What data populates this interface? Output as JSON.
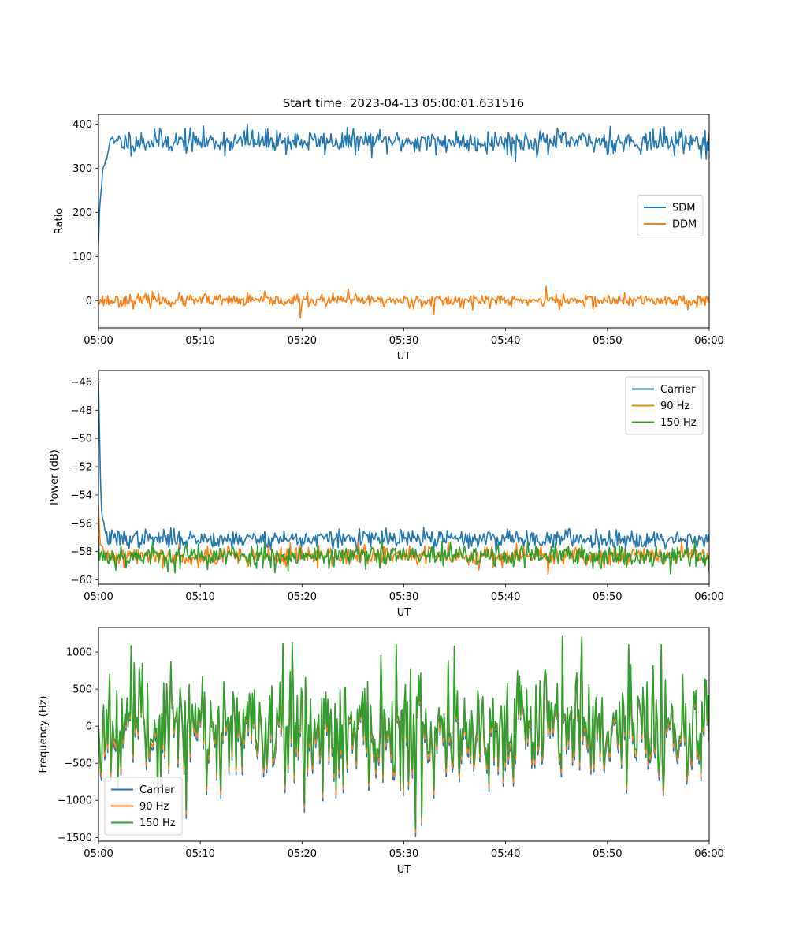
{
  "title": "Start time: 2023-04-13 05:00:01.631516",
  "chart_data": [
    {
      "type": "line",
      "xlabel": "UT",
      "ylabel": "Ratio",
      "xticks": [
        "05:00",
        "05:10",
        "05:20",
        "05:30",
        "05:40",
        "05:50",
        "06:00"
      ],
      "xlim": [
        0,
        60
      ],
      "ylim": [
        -62,
        422
      ],
      "yticks": [
        0,
        100,
        200,
        300,
        400
      ],
      "legend": "center-right",
      "series": [
        {
          "name": "SDM",
          "color": "#1f77b4",
          "baseline": 360,
          "noise": 13,
          "start": 130,
          "decay": 0.35,
          "spikes": [
            [
              14.6,
              400
            ],
            [
              8.5,
              390
            ],
            [
              50.3,
              395
            ],
            [
              59.6,
              385
            ],
            [
              41.0,
              315
            ],
            [
              59.7,
              320
            ],
            [
              33.2,
              330
            ],
            [
              5.5,
              388
            ],
            [
              17.5,
              385
            ]
          ]
        },
        {
          "name": "DDM",
          "color": "#ff7f0e",
          "baseline": 0,
          "noise": 7,
          "start": -8,
          "decay": 0,
          "spikes": [
            [
              19.8,
              -40
            ],
            [
              24.5,
              27
            ],
            [
              33.0,
              -32
            ],
            [
              44.0,
              32
            ],
            [
              5.3,
              20
            ],
            [
              45.3,
              -20
            ],
            [
              10.5,
              15
            ]
          ]
        }
      ]
    },
    {
      "type": "line",
      "xlabel": "UT",
      "ylabel": "Power (dB)",
      "xticks": [
        "05:00",
        "05:10",
        "05:20",
        "05:30",
        "05:40",
        "05:50",
        "06:00"
      ],
      "xlim": [
        0,
        60
      ],
      "ylim": [
        -60.3,
        -45.2
      ],
      "yticks": [
        -60,
        -58,
        -56,
        -54,
        -52,
        -50,
        -48,
        -46
      ],
      "legend": "top-right",
      "series": [
        {
          "name": "Carrier",
          "color": "#1f77b4",
          "baseline": -57.1,
          "noise": 0.32,
          "start": -45.7,
          "decay": 0.2,
          "spikes": [
            [
              32.0,
              -56.3
            ],
            [
              40.2,
              -56.4
            ]
          ]
        },
        {
          "name": "90 Hz",
          "color": "#ff7f0e",
          "baseline": -58.3,
          "noise": 0.35,
          "start": -55.2,
          "decay": 0.15,
          "spikes": [
            [
              44.2,
              -59.6
            ],
            [
              57.3,
              -57.3
            ],
            [
              25.5,
              -57.3
            ]
          ]
        },
        {
          "name": "150 Hz",
          "color": "#2ca02c",
          "baseline": -58.3,
          "noise": 0.42,
          "start": -57.5,
          "decay": 0.1,
          "spikes": [
            [
              7.5,
              -59.5
            ],
            [
              59.6,
              -59.0
            ]
          ]
        }
      ]
    },
    {
      "type": "line",
      "xlabel": "UT",
      "ylabel": "Frequency (Hz)",
      "xticks": [
        "05:00",
        "05:10",
        "05:20",
        "05:30",
        "05:40",
        "05:50",
        "06:00"
      ],
      "xlim": [
        0,
        60
      ],
      "ylim": [
        -1550,
        1330
      ],
      "yticks": [
        -1500,
        -1000,
        -500,
        0,
        500,
        1000
      ],
      "legend": "bottom-left",
      "series": [
        {
          "name": "Carrier",
          "color": "#1f77b4",
          "offset": -110
        },
        {
          "name": "90 Hz",
          "color": "#ff7f0e",
          "offset": -60
        },
        {
          "name": "150 Hz",
          "color": "#2ca02c",
          "offset": 0
        }
      ],
      "base_signal": {
        "mean": 0,
        "noise": 380,
        "spikes": [
          [
            31.2,
            -1380
          ],
          [
            45.6,
            1210
          ],
          [
            47.5,
            1200
          ],
          [
            18.1,
            1110
          ],
          [
            3.2,
            1090
          ],
          [
            8.6,
            -1130
          ],
          [
            29.2,
            1100
          ],
          [
            52.1,
            1100
          ],
          [
            55.3,
            1100
          ],
          [
            35.0,
            1080
          ],
          [
            12.0,
            -860
          ],
          [
            23.3,
            -860
          ],
          [
            33.0,
            -860
          ]
        ]
      }
    }
  ]
}
